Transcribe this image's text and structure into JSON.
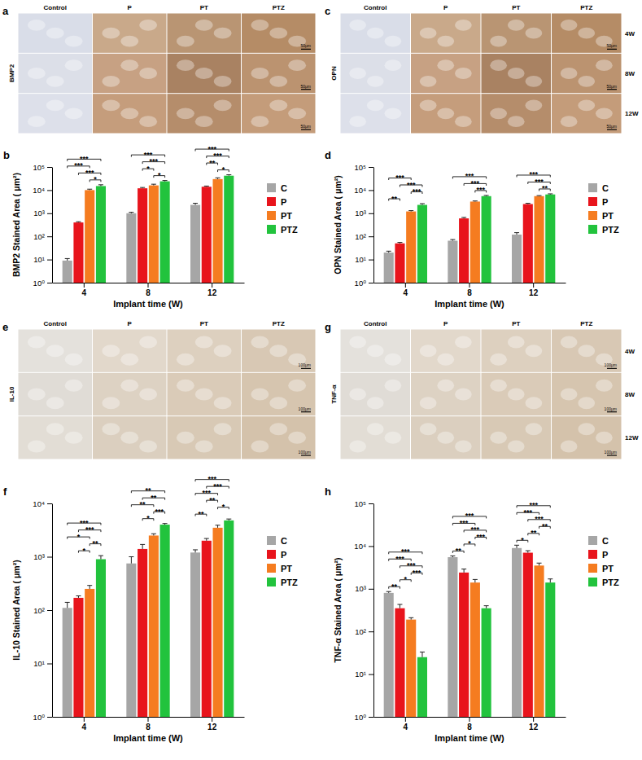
{
  "image_panels": [
    {
      "panel_label": "a",
      "row_label": "BMP2",
      "columns": [
        "Control",
        "P",
        "PT",
        "PTZ"
      ],
      "scale_bar": "50μm"
    },
    {
      "panel_label": "c",
      "row_label": "OPN",
      "columns": [
        "Control",
        "P",
        "PT",
        "PTZ"
      ],
      "rows": [
        "4W",
        "8W",
        "12W"
      ],
      "scale_bar": "50μm"
    },
    {
      "panel_label": "e",
      "row_label": "IL-10",
      "columns": [
        "Control",
        "P",
        "PT",
        "PTZ"
      ],
      "scale_bar": "100μm"
    },
    {
      "panel_label": "g",
      "row_label": "TNF-α",
      "columns": [
        "Control",
        "P",
        "PT",
        "PTZ"
      ],
      "rows": [
        "4W",
        "8W",
        "12W"
      ],
      "scale_bar": "100μm"
    }
  ],
  "chart_data": [
    {
      "type": "bar",
      "panel_label": "b",
      "x_label": "Implant time (W)",
      "y_label": "BMP2 Stained Area ( μm²)",
      "categories": [
        "4",
        "8",
        "12"
      ],
      "log": "y",
      "legend": "right",
      "ylim": [
        1,
        100000
      ],
      "yticks": [
        {
          "value": 1,
          "label": "10⁰"
        },
        {
          "value": 10,
          "label": "10¹"
        },
        {
          "value": 100,
          "label": "10²"
        },
        {
          "value": 1000,
          "label": "10³"
        },
        {
          "value": 10000,
          "label": "10⁴"
        },
        {
          "value": 100000,
          "label": "10⁵"
        }
      ],
      "series": [
        {
          "name": "C",
          "color": "#a6a6a6",
          "values": [
            9,
            1000,
            2300
          ],
          "error": [
            2,
            100,
            400
          ]
        },
        {
          "name": "P",
          "color": "#e8141c",
          "values": [
            400,
            12000,
            14000
          ],
          "error": [
            30,
            1000,
            1000
          ]
        },
        {
          "name": "PT",
          "color": "#f57c20",
          "values": [
            10000,
            16000,
            30000
          ],
          "error": [
            1000,
            2000,
            4000
          ]
        },
        {
          "name": "PTZ",
          "color": "#22c33d",
          "values": [
            15000,
            24000,
            42000
          ],
          "error": [
            2000,
            2000,
            4000
          ]
        }
      ],
      "annotations": [
        {
          "text": "*",
          "category": "4",
          "between": [
            "PT",
            "PTZ"
          ]
        },
        {
          "text": "***",
          "category": "4",
          "between": [
            "P",
            "PTZ"
          ]
        },
        {
          "text": "***",
          "category": "4",
          "between": [
            "C",
            "PT"
          ]
        },
        {
          "text": "***",
          "category": "4",
          "between": [
            "C",
            "PTZ"
          ]
        },
        {
          "text": "*",
          "category": "8",
          "between": [
            "PT",
            "PTZ"
          ]
        },
        {
          "text": "*",
          "category": "8",
          "between": [
            "P",
            "PT"
          ]
        },
        {
          "text": "***",
          "category": "8",
          "between": [
            "P",
            "PTZ"
          ]
        },
        {
          "text": "***",
          "category": "8",
          "between": [
            "C",
            "PTZ"
          ]
        },
        {
          "text": "*",
          "category": "12",
          "between": [
            "PT",
            "PTZ"
          ]
        },
        {
          "text": "**",
          "category": "12",
          "between": [
            "P",
            "PT"
          ]
        },
        {
          "text": "***",
          "category": "12",
          "between": [
            "P",
            "PTZ"
          ]
        },
        {
          "text": "***",
          "category": "12",
          "between": [
            "C",
            "PTZ"
          ]
        }
      ]
    },
    {
      "type": "bar",
      "panel_label": "d",
      "x_label": "Implant time (W)",
      "y_label": "OPN Stained Area ( μm²)",
      "categories": [
        "4",
        "8",
        "12"
      ],
      "log": "y",
      "legend": "right",
      "ylim": [
        1,
        100000
      ],
      "yticks": [
        {
          "value": 1,
          "label": "10⁰"
        },
        {
          "value": 10,
          "label": "10¹"
        },
        {
          "value": 100,
          "label": "10²"
        },
        {
          "value": 1000,
          "label": "10³"
        },
        {
          "value": 10000,
          "label": "10⁴"
        },
        {
          "value": 100000,
          "label": "10⁵"
        }
      ],
      "series": [
        {
          "name": "C",
          "color": "#a6a6a6",
          "values": [
            20,
            65,
            120
          ],
          "error": [
            3,
            8,
            25
          ]
        },
        {
          "name": "P",
          "color": "#e8141c",
          "values": [
            50,
            600,
            2500
          ],
          "error": [
            5,
            60,
            200
          ]
        },
        {
          "name": "PT",
          "color": "#f57c20",
          "values": [
            1200,
            3200,
            5500
          ],
          "error": [
            100,
            200,
            300
          ]
        },
        {
          "name": "PTZ",
          "color": "#22c33d",
          "values": [
            2300,
            5500,
            6500
          ],
          "error": [
            300,
            400,
            400
          ]
        }
      ],
      "annotations": [
        {
          "text": "**",
          "category": "4",
          "between": [
            "C",
            "P"
          ]
        },
        {
          "text": "***",
          "category": "4",
          "between": [
            "PT",
            "PTZ"
          ]
        },
        {
          "text": "***",
          "category": "4",
          "between": [
            "P",
            "PTZ"
          ]
        },
        {
          "text": "***",
          "category": "4",
          "between": [
            "C",
            "PT"
          ]
        },
        {
          "text": "***",
          "category": "8",
          "between": [
            "PT",
            "PTZ"
          ]
        },
        {
          "text": "***",
          "category": "8",
          "between": [
            "P",
            "PTZ"
          ]
        },
        {
          "text": "***",
          "category": "8",
          "between": [
            "C",
            "PTZ"
          ]
        },
        {
          "text": "**",
          "category": "12",
          "between": [
            "PT",
            "PTZ"
          ]
        },
        {
          "text": "***",
          "category": "12",
          "between": [
            "P",
            "PTZ"
          ]
        },
        {
          "text": "***",
          "category": "12",
          "between": [
            "C",
            "PTZ"
          ]
        }
      ]
    },
    {
      "type": "bar",
      "panel_label": "f",
      "x_label": "Implant time (W)",
      "y_label": "IL-10 Stained Area ( μm²)",
      "categories": [
        "4",
        "8",
        "12"
      ],
      "log": "y",
      "legend": "right",
      "ylim": [
        1,
        10000
      ],
      "yticks": [
        {
          "value": 1,
          "label": "10⁰"
        },
        {
          "value": 10,
          "label": "10¹"
        },
        {
          "value": 100,
          "label": "10²"
        },
        {
          "value": 1000,
          "label": "10³"
        },
        {
          "value": 10000,
          "label": "10⁴"
        }
      ],
      "series": [
        {
          "name": "C",
          "color": "#a6a6a6",
          "values": [
            110,
            750,
            1200
          ],
          "error": [
            30,
            250,
            150
          ]
        },
        {
          "name": "P",
          "color": "#e8141c",
          "values": [
            170,
            1400,
            2000
          ],
          "error": [
            15,
            300,
            200
          ]
        },
        {
          "name": "PT",
          "color": "#f57c20",
          "values": [
            250,
            2500,
            3500
          ],
          "error": [
            40,
            200,
            400
          ]
        },
        {
          "name": "PTZ",
          "color": "#22c33d",
          "values": [
            900,
            4000,
            4800
          ],
          "error": [
            150,
            200,
            300
          ]
        }
      ],
      "annotations": [
        {
          "text": "*",
          "category": "4",
          "between": [
            "P",
            "PT"
          ]
        },
        {
          "text": "**",
          "category": "4",
          "between": [
            "PT",
            "PTZ"
          ]
        },
        {
          "text": "*",
          "category": "4",
          "between": [
            "C",
            "PT"
          ]
        },
        {
          "text": "***",
          "category": "4",
          "between": [
            "P",
            "PTZ"
          ]
        },
        {
          "text": "***",
          "category": "4",
          "between": [
            "C",
            "PTZ"
          ]
        },
        {
          "text": "*",
          "category": "8",
          "between": [
            "P",
            "PT"
          ]
        },
        {
          "text": "***",
          "category": "8",
          "between": [
            "PT",
            "PTZ"
          ]
        },
        {
          "text": "**",
          "category": "8",
          "between": [
            "C",
            "PT"
          ]
        },
        {
          "text": "**",
          "category": "8",
          "between": [
            "P",
            "PTZ"
          ]
        },
        {
          "text": "**",
          "category": "8",
          "between": [
            "C",
            "PTZ"
          ]
        },
        {
          "text": "**",
          "category": "12",
          "between": [
            "C",
            "P"
          ]
        },
        {
          "text": "*",
          "category": "12",
          "between": [
            "PT",
            "PTZ"
          ]
        },
        {
          "text": "**",
          "category": "12",
          "between": [
            "P",
            "PT"
          ]
        },
        {
          "text": "***",
          "category": "12",
          "between": [
            "C",
            "PT"
          ]
        },
        {
          "text": "***",
          "category": "12",
          "between": [
            "P",
            "PTZ"
          ]
        },
        {
          "text": "***",
          "category": "12",
          "between": [
            "C",
            "PTZ"
          ]
        }
      ]
    },
    {
      "type": "bar",
      "panel_label": "h",
      "x_label": "Implant time (W)",
      "y_label": "TNF-α Stained Area ( μm²)",
      "categories": [
        "4",
        "8",
        "12"
      ],
      "log": "y",
      "legend": "right",
      "ylim": [
        1,
        100000
      ],
      "yticks": [
        {
          "value": 1,
          "label": "10⁰"
        },
        {
          "value": 10,
          "label": "10¹"
        },
        {
          "value": 100,
          "label": "10²"
        },
        {
          "value": 1000,
          "label": "10³"
        },
        {
          "value": 10000,
          "label": "10⁴"
        },
        {
          "value": 100000,
          "label": "10⁵"
        }
      ],
      "series": [
        {
          "name": "C",
          "color": "#a6a6a6",
          "values": [
            800,
            5500,
            9000
          ],
          "error": [
            60,
            400,
            1500
          ]
        },
        {
          "name": "P",
          "color": "#e8141c",
          "values": [
            350,
            2400,
            7000
          ],
          "error": [
            80,
            500,
            800
          ]
        },
        {
          "name": "PT",
          "color": "#f57c20",
          "values": [
            190,
            1400,
            3500
          ],
          "error": [
            20,
            250,
            500
          ]
        },
        {
          "name": "PTZ",
          "color": "#22c33d",
          "values": [
            25,
            350,
            1400
          ],
          "error": [
            8,
            50,
            300
          ]
        }
      ],
      "annotations": [
        {
          "text": "**",
          "category": "4",
          "between": [
            "C",
            "P"
          ]
        },
        {
          "text": "*",
          "category": "4",
          "between": [
            "P",
            "PT"
          ]
        },
        {
          "text": "***",
          "category": "4",
          "between": [
            "PT",
            "PTZ"
          ]
        },
        {
          "text": "***",
          "category": "4",
          "between": [
            "P",
            "PTZ"
          ]
        },
        {
          "text": "***",
          "category": "4",
          "between": [
            "C",
            "PT"
          ]
        },
        {
          "text": "***",
          "category": "4",
          "between": [
            "C",
            "PTZ"
          ]
        },
        {
          "text": "**",
          "category": "8",
          "between": [
            "C",
            "P"
          ]
        },
        {
          "text": "*",
          "category": "8",
          "between": [
            "P",
            "PT"
          ]
        },
        {
          "text": "***",
          "category": "8",
          "between": [
            "PT",
            "PTZ"
          ]
        },
        {
          "text": "***",
          "category": "8",
          "between": [
            "P",
            "PTZ"
          ]
        },
        {
          "text": "***",
          "category": "8",
          "between": [
            "C",
            "PT"
          ]
        },
        {
          "text": "***",
          "category": "8",
          "between": [
            "C",
            "PTZ"
          ]
        },
        {
          "text": "*",
          "category": "12",
          "between": [
            "C",
            "P"
          ]
        },
        {
          "text": "**",
          "category": "12",
          "between": [
            "P",
            "PT"
          ]
        },
        {
          "text": "**",
          "category": "12",
          "between": [
            "PT",
            "PTZ"
          ]
        },
        {
          "text": "***",
          "category": "12",
          "between": [
            "P",
            "PTZ"
          ]
        },
        {
          "text": "***",
          "category": "12",
          "between": [
            "C",
            "PT"
          ]
        },
        {
          "text": "***",
          "category": "12",
          "between": [
            "C",
            "PTZ"
          ]
        }
      ]
    }
  ]
}
